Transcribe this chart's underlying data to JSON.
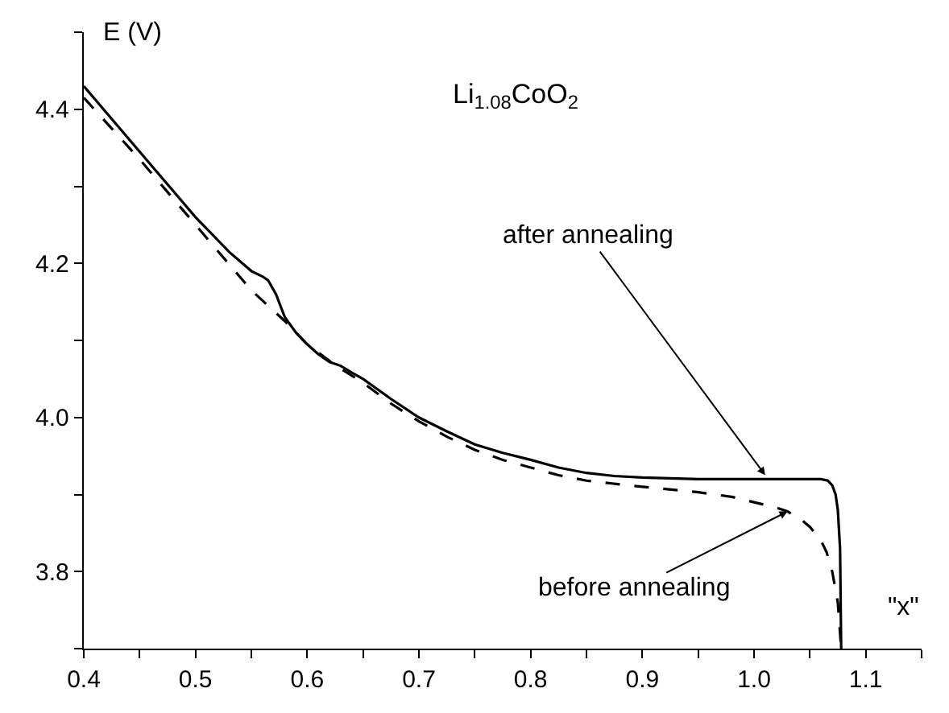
{
  "chart_data": {
    "type": "line",
    "xlabel": "\"x\"",
    "ylabel": "E (V)",
    "xlim": [
      0.4,
      1.15
    ],
    "ylim": [
      3.7,
      4.5
    ],
    "xticks": [
      {
        "value": 0.4,
        "label": "0.4"
      },
      {
        "value": 0.45,
        "label": null
      },
      {
        "value": 0.5,
        "label": "0.5"
      },
      {
        "value": 0.55,
        "label": null
      },
      {
        "value": 0.6,
        "label": "0.6"
      },
      {
        "value": 0.65,
        "label": null
      },
      {
        "value": 0.7,
        "label": "0.7"
      },
      {
        "value": 0.75,
        "label": null
      },
      {
        "value": 0.8,
        "label": "0.8"
      },
      {
        "value": 0.85,
        "label": null
      },
      {
        "value": 0.9,
        "label": "0.9"
      },
      {
        "value": 0.95,
        "label": null
      },
      {
        "value": 1.0,
        "label": "1.0"
      },
      {
        "value": 1.05,
        "label": null
      },
      {
        "value": 1.1,
        "label": "1.1"
      },
      {
        "value": 1.15,
        "label": null
      }
    ],
    "yticks": [
      {
        "value": 3.7,
        "label": null
      },
      3.8,
      {
        "value": 3.9,
        "label": null
      },
      {
        "value": 4.0,
        "label": "4.0"
      },
      {
        "value": 4.1,
        "label": null
      },
      4.2,
      {
        "value": 4.3,
        "label": null
      },
      4.4,
      {
        "value": 4.5,
        "label": null
      }
    ],
    "marker": "none",
    "series": [
      {
        "color": "#000000",
        "line_style": "solid",
        "x": [
          0.4,
          0.45,
          0.5,
          0.53,
          0.55,
          0.56,
          0.565,
          0.572,
          0.58,
          0.59,
          0.6,
          0.61,
          0.62,
          0.63,
          0.64,
          0.65,
          0.675,
          0.7,
          0.725,
          0.75,
          0.775,
          0.8,
          0.825,
          0.85,
          0.875,
          0.9,
          0.95,
          1.0,
          1.05,
          1.06,
          1.066,
          1.07,
          1.073,
          1.075,
          1.077,
          1.078
        ],
        "values": [
          4.43,
          4.345,
          4.26,
          4.215,
          4.19,
          4.183,
          4.178,
          4.16,
          4.13,
          4.11,
          4.095,
          4.082,
          4.072,
          4.067,
          4.058,
          4.05,
          4.024,
          4.0,
          3.982,
          3.965,
          3.954,
          3.945,
          3.935,
          3.928,
          3.924,
          3.922,
          3.92,
          3.92,
          3.92,
          3.92,
          3.918,
          3.912,
          3.9,
          3.88,
          3.83,
          3.7
        ]
      },
      {
        "color": "#000000",
        "line_style": "dashed",
        "x": [
          0.4,
          0.45,
          0.5,
          0.55,
          0.58,
          0.6,
          0.625,
          0.65,
          0.675,
          0.7,
          0.725,
          0.75,
          0.775,
          0.8,
          0.825,
          0.85,
          0.9,
          0.95,
          0.98,
          1.0,
          1.02,
          1.03,
          1.04,
          1.05,
          1.06,
          1.065,
          1.07,
          1.075,
          1.078
        ],
        "values": [
          4.415,
          4.335,
          4.25,
          4.165,
          4.125,
          4.095,
          4.068,
          4.045,
          4.018,
          3.995,
          3.975,
          3.958,
          3.945,
          3.935,
          3.925,
          3.918,
          3.91,
          3.903,
          3.897,
          3.89,
          3.883,
          3.878,
          3.87,
          3.858,
          3.84,
          3.825,
          3.8,
          3.76,
          3.7
        ]
      }
    ],
    "annotations": [
      "Li$_{1.08}$CoO$_{2}$",
      {
        "text": "after annealing",
        "x": 1.01,
        "y": 3.925
      },
      {
        "text": "before annealing",
        "x": 1.03,
        "y": 3.878
      }
    ]
  }
}
